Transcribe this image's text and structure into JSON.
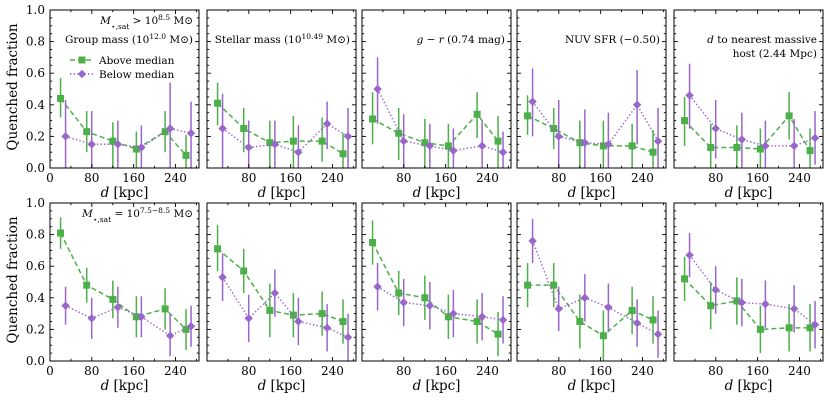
{
  "colors": {
    "above": "#4daf4a",
    "below": "#9966cc",
    "frame": "#000000"
  },
  "legend": {
    "above_label": "Above median",
    "below_label": "Below median"
  },
  "axes": {
    "ylabel": "Quenched fraction",
    "xlabel_italic": "d",
    "xlabel_unit": " [kpc]",
    "xlim": [
      0,
      285
    ],
    "ylim": [
      0,
      1.0
    ],
    "xticks": [
      0,
      80,
      160,
      240
    ],
    "xticks_inner": [
      80,
      160,
      240
    ],
    "yticks": [
      0.0,
      0.2,
      0.4,
      0.6,
      0.8,
      1.0
    ],
    "ytick_labels": [
      "0.0",
      "0.2",
      "0.4",
      "0.6",
      "0.8",
      "1.0"
    ]
  },
  "chart_data": [
    {
      "type": "line",
      "row": 0,
      "col": 0,
      "title": "Group mass (10^12.0 M⊙)",
      "row_annotation": "M⋆,sat > 10^8.5 M⊙",
      "x": [
        25,
        75,
        125,
        170,
        225,
        265
      ],
      "series": [
        {
          "name": "Above median",
          "values": [
            0.44,
            0.23,
            0.17,
            0.12,
            0.23,
            0.08
          ],
          "lower": [
            0.32,
            0.1,
            0.0,
            0.0,
            0.1,
            0.0
          ],
          "upper": [
            0.57,
            0.36,
            0.29,
            0.23,
            0.36,
            0.21
          ]
        },
        {
          "name": "Below median",
          "values": [
            0.2,
            0.15,
            0.15,
            0.13,
            0.25,
            0.22
          ],
          "lower": [
            0.0,
            0.0,
            0.0,
            0.0,
            0.0,
            0.0
          ],
          "upper": [
            0.43,
            0.36,
            0.3,
            0.27,
            0.54,
            0.42
          ]
        }
      ]
    },
    {
      "type": "line",
      "row": 0,
      "col": 1,
      "title": "Stellar mass (10^10.49 M⊙)",
      "x": [
        25,
        75,
        125,
        170,
        225,
        265
      ],
      "series": [
        {
          "name": "Above median",
          "values": [
            0.41,
            0.25,
            0.16,
            0.17,
            0.17,
            0.09
          ],
          "lower": [
            0.27,
            0.1,
            0.0,
            0.0,
            0.04,
            0.0
          ],
          "upper": [
            0.54,
            0.38,
            0.3,
            0.33,
            0.32,
            0.22
          ]
        },
        {
          "name": "Below median",
          "values": [
            0.25,
            0.13,
            0.15,
            0.1,
            0.28,
            0.2
          ],
          "lower": [
            0.0,
            0.0,
            0.0,
            0.0,
            0.12,
            0.0
          ],
          "upper": [
            0.47,
            0.3,
            0.3,
            0.27,
            0.42,
            0.38
          ]
        }
      ]
    },
    {
      "type": "line",
      "row": 0,
      "col": 2,
      "title": "g − r (0.74 mag)",
      "x": [
        25,
        75,
        125,
        170,
        225,
        265
      ],
      "series": [
        {
          "name": "Above median",
          "values": [
            0.31,
            0.22,
            0.16,
            0.14,
            0.34,
            0.17
          ],
          "lower": [
            0.15,
            0.05,
            0.0,
            0.0,
            0.19,
            0.0
          ],
          "upper": [
            0.48,
            0.38,
            0.31,
            0.28,
            0.48,
            0.33
          ]
        },
        {
          "name": "Below median",
          "values": [
            0.5,
            0.17,
            0.14,
            0.11,
            0.14,
            0.1
          ],
          "lower": [
            0.28,
            0.0,
            0.0,
            0.0,
            0.0,
            0.0
          ],
          "upper": [
            0.7,
            0.34,
            0.28,
            0.25,
            0.3,
            0.23
          ]
        }
      ]
    },
    {
      "type": "line",
      "row": 0,
      "col": 3,
      "title": "NUV SFR (−0.50)",
      "x": [
        25,
        75,
        125,
        170,
        225,
        265
      ],
      "series": [
        {
          "name": "Above median",
          "values": [
            0.33,
            0.25,
            0.16,
            0.14,
            0.14,
            0.1
          ],
          "lower": [
            0.21,
            0.12,
            0.0,
            0.0,
            0.0,
            0.0
          ],
          "upper": [
            0.46,
            0.38,
            0.3,
            0.3,
            0.28,
            0.24
          ]
        },
        {
          "name": "Below median",
          "values": [
            0.42,
            0.2,
            0.16,
            0.15,
            0.4,
            0.17
          ],
          "lower": [
            0.2,
            0.0,
            0.0,
            0.0,
            0.15,
            0.0
          ],
          "upper": [
            0.63,
            0.43,
            0.37,
            0.35,
            0.62,
            0.38
          ]
        }
      ]
    },
    {
      "type": "line",
      "row": 0,
      "col": 4,
      "title": "d to nearest massive host (2.44 Mpc)",
      "x": [
        25,
        75,
        125,
        170,
        225,
        265
      ],
      "series": [
        {
          "name": "Above median",
          "values": [
            0.3,
            0.13,
            0.13,
            0.12,
            0.33,
            0.11
          ],
          "lower": [
            0.14,
            0.0,
            0.0,
            0.0,
            0.18,
            0.0
          ],
          "upper": [
            0.45,
            0.28,
            0.27,
            0.25,
            0.48,
            0.25
          ]
        },
        {
          "name": "Below median",
          "values": [
            0.46,
            0.25,
            0.18,
            0.14,
            0.14,
            0.19
          ],
          "lower": [
            0.25,
            0.06,
            0.0,
            0.0,
            0.0,
            0.02
          ],
          "upper": [
            0.66,
            0.43,
            0.35,
            0.3,
            0.31,
            0.36
          ]
        }
      ]
    },
    {
      "type": "line",
      "row": 1,
      "col": 0,
      "title": "",
      "row_annotation": "M⋆,sat = 10^7.5−8.5 M⊙",
      "x": [
        25,
        75,
        125,
        170,
        225,
        265
      ],
      "series": [
        {
          "name": "Above median",
          "values": [
            0.81,
            0.48,
            0.39,
            0.28,
            0.33,
            0.2
          ],
          "lower": [
            0.71,
            0.37,
            0.27,
            0.15,
            0.2,
            0.07
          ],
          "upper": [
            0.91,
            0.59,
            0.51,
            0.41,
            0.46,
            0.33
          ]
        },
        {
          "name": "Below median",
          "values": [
            0.35,
            0.27,
            0.34,
            0.28,
            0.16,
            0.22
          ],
          "lower": [
            0.23,
            0.14,
            0.21,
            0.15,
            0.03,
            0.09
          ],
          "upper": [
            0.47,
            0.4,
            0.47,
            0.41,
            0.3,
            0.35
          ]
        }
      ]
    },
    {
      "type": "line",
      "row": 1,
      "col": 1,
      "title": "",
      "x": [
        25,
        75,
        125,
        170,
        225,
        265
      ],
      "series": [
        {
          "name": "Above median",
          "values": [
            0.71,
            0.57,
            0.32,
            0.29,
            0.3,
            0.25
          ],
          "lower": [
            0.57,
            0.43,
            0.15,
            0.15,
            0.16,
            0.11
          ],
          "upper": [
            0.86,
            0.71,
            0.49,
            0.43,
            0.44,
            0.39
          ]
        },
        {
          "name": "Below median",
          "values": [
            0.53,
            0.27,
            0.43,
            0.25,
            0.21,
            0.15
          ],
          "lower": [
            0.38,
            0.12,
            0.28,
            0.1,
            0.06,
            0.0
          ],
          "upper": [
            0.68,
            0.42,
            0.58,
            0.4,
            0.36,
            0.3
          ]
        }
      ]
    },
    {
      "type": "line",
      "row": 1,
      "col": 2,
      "title": "",
      "x": [
        25,
        75,
        125,
        170,
        225,
        265
      ],
      "series": [
        {
          "name": "Above median",
          "values": [
            0.75,
            0.43,
            0.4,
            0.28,
            0.25,
            0.17
          ],
          "lower": [
            0.61,
            0.29,
            0.26,
            0.14,
            0.11,
            0.03
          ],
          "upper": [
            0.89,
            0.57,
            0.54,
            0.42,
            0.39,
            0.31
          ]
        },
        {
          "name": "Below median",
          "values": [
            0.47,
            0.37,
            0.35,
            0.3,
            0.28,
            0.26
          ],
          "lower": [
            0.32,
            0.22,
            0.2,
            0.15,
            0.13,
            0.11
          ],
          "upper": [
            0.62,
            0.52,
            0.5,
            0.45,
            0.43,
            0.41
          ]
        }
      ]
    },
    {
      "type": "line",
      "row": 1,
      "col": 3,
      "title": "",
      "x": [
        25,
        75,
        125,
        170,
        225,
        265
      ],
      "series": [
        {
          "name": "Above median",
          "values": [
            0.48,
            0.48,
            0.25,
            0.16,
            0.32,
            0.26
          ],
          "lower": [
            0.34,
            0.34,
            0.08,
            0.0,
            0.17,
            0.11
          ],
          "upper": [
            0.62,
            0.62,
            0.42,
            0.32,
            0.47,
            0.41
          ]
        },
        {
          "name": "Below median",
          "values": [
            0.76,
            0.33,
            0.4,
            0.34,
            0.24,
            0.17
          ],
          "lower": [
            0.62,
            0.19,
            0.25,
            0.19,
            0.09,
            0.02
          ],
          "upper": [
            0.9,
            0.47,
            0.55,
            0.49,
            0.39,
            0.32
          ]
        }
      ]
    },
    {
      "type": "line",
      "row": 1,
      "col": 4,
      "title": "",
      "x": [
        25,
        75,
        125,
        170,
        225,
        265
      ],
      "series": [
        {
          "name": "Above median",
          "values": [
            0.52,
            0.35,
            0.38,
            0.2,
            0.21,
            0.21
          ],
          "lower": [
            0.38,
            0.2,
            0.23,
            0.05,
            0.06,
            0.06
          ],
          "upper": [
            0.66,
            0.5,
            0.53,
            0.35,
            0.36,
            0.36
          ]
        },
        {
          "name": "Below median",
          "values": [
            0.67,
            0.45,
            0.37,
            0.36,
            0.33,
            0.23
          ],
          "lower": [
            0.53,
            0.3,
            0.22,
            0.21,
            0.18,
            0.08
          ],
          "upper": [
            0.81,
            0.6,
            0.52,
            0.51,
            0.48,
            0.38
          ]
        }
      ]
    }
  ]
}
